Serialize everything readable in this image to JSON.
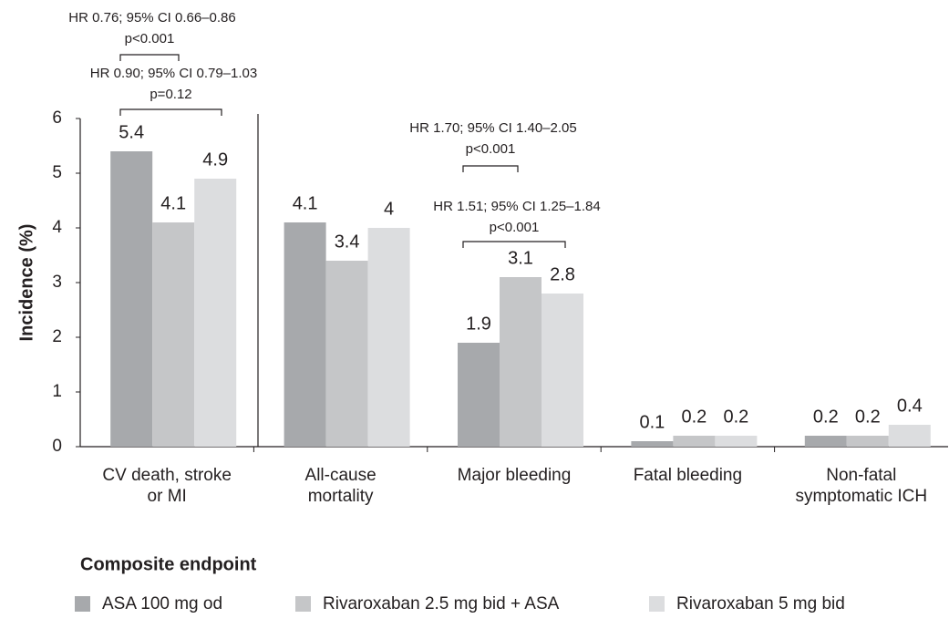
{
  "chart_data": {
    "type": "bar",
    "y_label": "Incidence (%)",
    "x_label": "Composite endpoint",
    "categories": [
      [
        "CV death, stroke",
        "or MI"
      ],
      [
        "All-cause",
        "mortality"
      ],
      [
        "Major bleeding"
      ],
      [
        "Fatal bleeding"
      ],
      [
        "Non-fatal",
        "symptomatic ICH"
      ]
    ],
    "series": [
      {
        "name": "ASA 100 mg od",
        "color": "#a7a9ac",
        "values": [
          5.4,
          4.1,
          1.9,
          0.1,
          0.2
        ]
      },
      {
        "name": "Rivaroxaban 2.5 mg bid + ASA",
        "color": "#c5c6c8",
        "values": [
          4.1,
          3.4,
          3.1,
          0.2,
          0.2
        ]
      },
      {
        "name": "Rivaroxaban 5 mg bid",
        "color": "#dcdddf",
        "values": [
          4.9,
          4.0,
          2.8,
          0.2,
          0.4
        ]
      }
    ],
    "ylim": [
      0,
      6
    ],
    "yticks": [
      0,
      1,
      2,
      3,
      4,
      5,
      6
    ],
    "annotations": [
      [
        "HR 0.76; 95% CI 0.66–0.86",
        "p<0.001"
      ],
      [
        "HR 0.90; 95% CI 0.79–1.03",
        "p=0.12"
      ],
      [
        "HR 1.70; 95% CI 1.40–2.05",
        "p<0.001"
      ],
      [
        "HR 1.51; 95% CI 1.25–1.84",
        "p<0.001"
      ]
    ]
  }
}
